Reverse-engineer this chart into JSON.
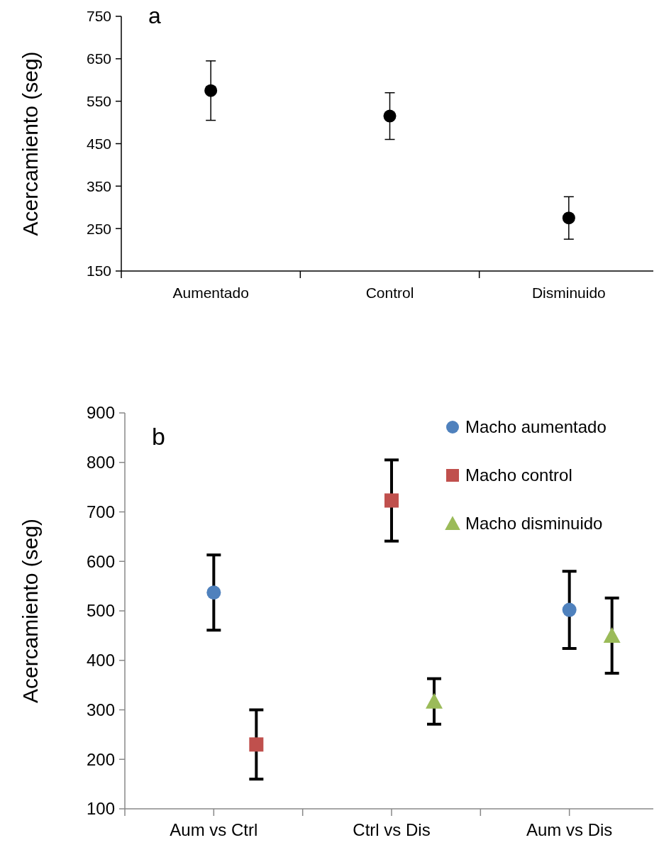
{
  "chart_data": [
    {
      "type": "scatter",
      "title": "a",
      "ylabel": "Acercamiento (seg)",
      "categories": [
        "Aumentado",
        "Control",
        "Disminuido"
      ],
      "ylim": [
        150,
        750
      ],
      "yticks": [
        150,
        250,
        350,
        450,
        550,
        650,
        750
      ],
      "marker": "circle",
      "grid": false,
      "legend": false,
      "series": [
        {
          "color": "#000000",
          "values": [
            575,
            515,
            275
          ],
          "errors": [
            70,
            55,
            50
          ]
        }
      ]
    },
    {
      "type": "scatter",
      "title": "b",
      "ylabel": "Acercamiento (seg)",
      "categories": [
        "Aum vs Ctrl",
        "Ctrl vs Dis",
        "Aum vs Dis"
      ],
      "ylim": [
        100,
        900
      ],
      "yticks": [
        100,
        200,
        300,
        400,
        500,
        600,
        700,
        800,
        900
      ],
      "grid": false,
      "legend": "top right",
      "series": [
        {
          "name": "Macho aumentado",
          "color": "#4f81bd",
          "marker": "circle",
          "values": [
            537,
            null,
            502
          ],
          "errors": [
            76,
            null,
            78
          ]
        },
        {
          "name": "Macho control",
          "color": "#c0504d",
          "marker": "square",
          "values": [
            230,
            723,
            null
          ],
          "errors": [
            70,
            82,
            null
          ]
        },
        {
          "name": "Macho disminuido",
          "color": "#9bbb59",
          "marker": "triangle",
          "values": [
            null,
            317,
            450
          ],
          "errors": [
            null,
            46,
            76
          ]
        }
      ]
    }
  ]
}
